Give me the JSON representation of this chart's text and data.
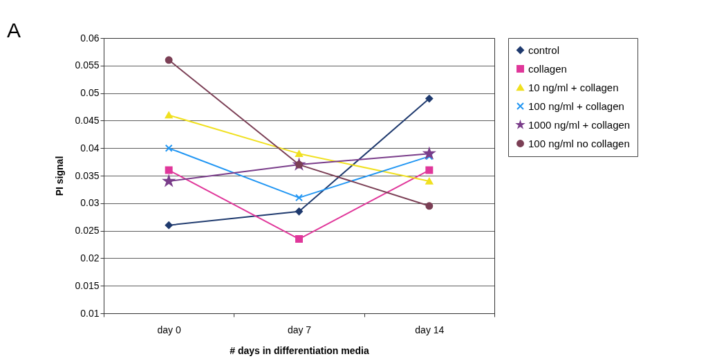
{
  "chart_data": {
    "type": "line",
    "xlabel": "# days in differentiation media",
    "ylabel": "PI signal",
    "annotations": [
      "A"
    ],
    "categories": [
      "day 0",
      "day 7",
      "day 14"
    ],
    "series": [
      {
        "name": "control",
        "color": "#1f3a6e",
        "marker": "diamond",
        "values": [
          0.026,
          0.0285,
          0.049
        ]
      },
      {
        "name": "collagen",
        "color": "#e0379a",
        "marker": "square",
        "values": [
          0.036,
          0.0235,
          0.036
        ]
      },
      {
        "name": "10 ng/ml + collagen",
        "color": "#f0e020",
        "marker": "triangle",
        "values": [
          0.046,
          0.039,
          0.034
        ]
      },
      {
        "name": "100 ng/ml + collagen",
        "color": "#2196f3",
        "marker": "cross",
        "values": [
          0.04,
          0.031,
          0.0385
        ]
      },
      {
        "name": "1000 ng/ml + collagen",
        "color": "#7a3d8a",
        "marker": "star",
        "values": [
          0.034,
          0.037,
          0.039
        ]
      },
      {
        "name": "100 ng/ml no collagen",
        "color": "#7b3f55",
        "marker": "circle",
        "values": [
          0.056,
          0.037,
          0.0295
        ]
      }
    ],
    "ylim": [
      0.01,
      0.06
    ],
    "yticks": [
      0.01,
      0.015,
      0.02,
      0.025,
      0.03,
      0.035,
      0.04,
      0.045,
      0.05,
      0.055,
      0.06
    ],
    "grid": "y",
    "legend": "right"
  }
}
